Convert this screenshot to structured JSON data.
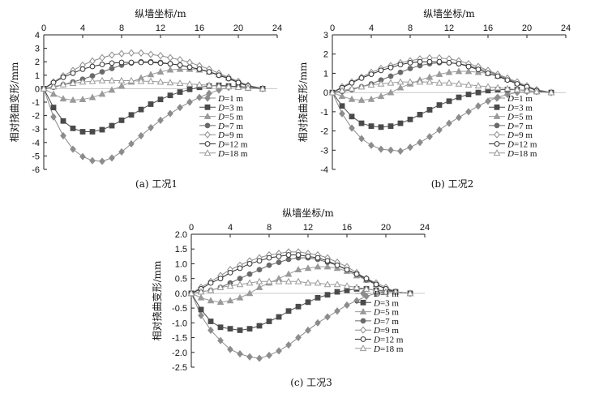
{
  "chart_data": [
    {
      "type": "line",
      "caption": "(a) 工况1",
      "xlabel": "纵墙坐标/m",
      "ylabel": "相对挠曲变形/mm",
      "xlim": [
        0,
        24
      ],
      "ylim": [
        -6,
        4
      ],
      "xticks": [
        0,
        4,
        8,
        12,
        16,
        20,
        24
      ],
      "yticks": [
        4,
        3,
        2,
        1,
        0,
        -1,
        -2,
        -3,
        -4,
        -5,
        -6
      ],
      "x": [
        0,
        1,
        2,
        3,
        4,
        5,
        6,
        7,
        8,
        9,
        10,
        11,
        12,
        13,
        14,
        15,
        16,
        17,
        18,
        19,
        20,
        21,
        22.5
      ],
      "series": [
        {
          "name": "D=1 m",
          "d": "D",
          "rest": "=1 m",
          "marker": "diamond-filled",
          "color": "#8c8c8c",
          "values": [
            0,
            -2.1,
            -3.5,
            -4.5,
            -5.05,
            -5.35,
            -5.4,
            -5.15,
            -4.7,
            -4.1,
            -3.5,
            -2.9,
            -2.35,
            -1.85,
            -1.4,
            -1.0,
            -0.65,
            -0.35,
            -0.1,
            0.1,
            0.2,
            0.1,
            0
          ]
        },
        {
          "name": "D=3 m",
          "d": "D",
          "rest": "=3 m",
          "marker": "square-filled",
          "color": "#4a4a4a",
          "values": [
            0,
            -1.4,
            -2.4,
            -2.95,
            -3.2,
            -3.2,
            -3.05,
            -2.75,
            -2.35,
            -1.95,
            -1.55,
            -1.15,
            -0.8,
            -0.5,
            -0.25,
            -0.05,
            0.1,
            0.2,
            0.25,
            0.2,
            0.15,
            0.05,
            0
          ]
        },
        {
          "name": "D=5 m",
          "d": "D",
          "rest": "=5 m",
          "marker": "triangle-filled",
          "color": "#9a9a9a",
          "values": [
            0,
            -0.4,
            -0.75,
            -0.85,
            -0.8,
            -0.65,
            -0.4,
            -0.1,
            0.2,
            0.5,
            0.8,
            1.05,
            1.25,
            1.4,
            1.45,
            1.45,
            1.4,
            1.25,
            1.05,
            0.8,
            0.5,
            0.2,
            0
          ]
        },
        {
          "name": "D=7 m",
          "d": "D",
          "rest": "=7 m",
          "marker": "circle-filled",
          "color": "#6a6a6a",
          "values": [
            0,
            0.1,
            0.3,
            0.5,
            0.7,
            0.95,
            1.25,
            1.5,
            1.75,
            1.9,
            2.0,
            2.0,
            1.95,
            1.85,
            1.75,
            1.6,
            1.45,
            1.25,
            1.0,
            0.75,
            0.5,
            0.2,
            0
          ]
        },
        {
          "name": "D=9 m",
          "d": "D",
          "rest": "=9 m",
          "marker": "diamond-open",
          "color": "#8c8c8c",
          "values": [
            0,
            0.5,
            0.95,
            1.35,
            1.75,
            2.05,
            2.3,
            2.5,
            2.6,
            2.65,
            2.65,
            2.55,
            2.45,
            2.3,
            2.15,
            1.95,
            1.7,
            1.45,
            1.15,
            0.85,
            0.55,
            0.25,
            0
          ]
        },
        {
          "name": "D=12 m",
          "d": "D",
          "rest": "=12 m",
          "marker": "circle-open",
          "color": "#333333",
          "values": [
            0,
            0.45,
            0.85,
            1.15,
            1.45,
            1.65,
            1.8,
            1.9,
            1.95,
            1.95,
            1.95,
            1.95,
            1.9,
            1.85,
            1.75,
            1.6,
            1.45,
            1.25,
            1.0,
            0.75,
            0.45,
            0.2,
            0
          ]
        },
        {
          "name": "D=18 m",
          "d": "D",
          "rest": "=18 m",
          "marker": "triangle-open",
          "color": "#9a9a9a",
          "values": [
            0,
            0.15,
            0.3,
            0.4,
            0.5,
            0.55,
            0.6,
            0.6,
            0.6,
            0.6,
            0.55,
            0.55,
            0.5,
            0.45,
            0.4,
            0.35,
            0.3,
            0.25,
            0.2,
            0.15,
            0.1,
            0.05,
            0
          ]
        }
      ]
    },
    {
      "type": "line",
      "caption": "(b) 工况2",
      "xlabel": "纵墙坐标/m",
      "ylabel": "相对挠曲变形/mm",
      "xlim": [
        0,
        24
      ],
      "ylim": [
        -4,
        3
      ],
      "xticks": [
        0,
        4,
        8,
        12,
        16,
        20,
        24
      ],
      "yticks": [
        3,
        2,
        1,
        0,
        -1,
        -2,
        -3,
        -4
      ],
      "x": [
        0,
        1,
        2,
        3,
        4,
        5,
        6,
        7,
        8,
        9,
        10,
        11,
        12,
        13,
        14,
        15,
        16,
        17,
        18,
        19,
        20,
        21,
        22.5
      ],
      "series": [
        {
          "name": "D=1 m",
          "d": "D",
          "rest": "=1 m",
          "marker": "diamond-filled",
          "color": "#8c8c8c",
          "values": [
            0,
            -1.1,
            -1.85,
            -2.4,
            -2.75,
            -2.95,
            -3.0,
            -3.05,
            -2.85,
            -2.6,
            -2.3,
            -1.95,
            -1.6,
            -1.3,
            -1.0,
            -0.7,
            -0.45,
            -0.25,
            -0.1,
            0.0,
            0.05,
            0.05,
            0
          ]
        },
        {
          "name": "D=3 m",
          "d": "D",
          "rest": "=3 m",
          "marker": "square-filled",
          "color": "#4a4a4a",
          "values": [
            0,
            -0.7,
            -1.25,
            -1.6,
            -1.75,
            -1.8,
            -1.75,
            -1.6,
            -1.4,
            -1.15,
            -0.9,
            -0.65,
            -0.45,
            -0.25,
            -0.1,
            0.0,
            0.1,
            0.15,
            0.15,
            0.15,
            0.1,
            0.05,
            0
          ]
        },
        {
          "name": "D=5 m",
          "d": "D",
          "rest": "=5 m",
          "marker": "triangle-filled",
          "color": "#9a9a9a",
          "values": [
            0,
            -0.2,
            -0.35,
            -0.4,
            -0.35,
            -0.2,
            0.0,
            0.25,
            0.45,
            0.65,
            0.8,
            0.95,
            1.05,
            1.1,
            1.1,
            1.05,
            1.0,
            0.85,
            0.7,
            0.5,
            0.3,
            0.1,
            0
          ]
        },
        {
          "name": "D=7 m",
          "d": "D",
          "rest": "=7 m",
          "marker": "circle-filled",
          "color": "#6a6a6a",
          "values": [
            0,
            0.05,
            0.15,
            0.3,
            0.45,
            0.65,
            0.85,
            1.05,
            1.25,
            1.4,
            1.5,
            1.55,
            1.55,
            1.5,
            1.4,
            1.25,
            1.1,
            0.9,
            0.7,
            0.5,
            0.3,
            0.1,
            0
          ]
        },
        {
          "name": "D=9 m",
          "d": "D",
          "rest": "=9 m",
          "marker": "diamond-open",
          "color": "#8c8c8c",
          "values": [
            0,
            0.3,
            0.55,
            0.8,
            1.05,
            1.25,
            1.4,
            1.55,
            1.65,
            1.75,
            1.8,
            1.8,
            1.75,
            1.65,
            1.5,
            1.35,
            1.15,
            0.95,
            0.75,
            0.55,
            0.35,
            0.15,
            0
          ]
        },
        {
          "name": "D=12 m",
          "d": "D",
          "rest": "=12 m",
          "marker": "circle-open",
          "color": "#333333",
          "values": [
            0,
            0.25,
            0.5,
            0.75,
            0.95,
            1.15,
            1.3,
            1.45,
            1.55,
            1.6,
            1.6,
            1.6,
            1.55,
            1.5,
            1.35,
            1.2,
            1.0,
            0.85,
            0.65,
            0.45,
            0.3,
            0.1,
            0
          ]
        },
        {
          "name": "D=18 m",
          "d": "D",
          "rest": "=18 m",
          "marker": "triangle-open",
          "color": "#9a9a9a",
          "values": [
            0,
            0.1,
            0.2,
            0.3,
            0.4,
            0.45,
            0.5,
            0.55,
            0.55,
            0.55,
            0.55,
            0.5,
            0.5,
            0.45,
            0.4,
            0.35,
            0.3,
            0.25,
            0.2,
            0.15,
            0.1,
            0.05,
            0
          ]
        }
      ]
    },
    {
      "type": "line",
      "caption": "(c) 工况3",
      "xlabel": "纵墙坐标/m",
      "ylabel": "相对挠曲变形/mm",
      "xlim": [
        0,
        24
      ],
      "ylim": [
        -2.5,
        2.0
      ],
      "xticks": [
        0,
        4,
        8,
        12,
        16,
        20,
        24
      ],
      "yticks": [
        2.0,
        1.5,
        1.0,
        0.5,
        0.0,
        -0.5,
        -1.0,
        -1.5,
        -2.0,
        -2.5
      ],
      "ytickLabels": [
        "2.0",
        "1.5",
        "1.0",
        "0.5",
        "0.0",
        "-0.5",
        "-1.0",
        "-1.5",
        "-2.0",
        "-2.5"
      ],
      "x": [
        0,
        1,
        2,
        3,
        4,
        5,
        6,
        7,
        8,
        9,
        10,
        11,
        12,
        13,
        14,
        15,
        16,
        17,
        18,
        19,
        20,
        21,
        22.5
      ],
      "series": [
        {
          "name": "D=1 m",
          "d": "D",
          "rest": "=1 m",
          "marker": "diamond-filled",
          "color": "#8c8c8c",
          "values": [
            0,
            -0.75,
            -1.25,
            -1.6,
            -1.9,
            -2.05,
            -2.15,
            -2.2,
            -2.1,
            -1.95,
            -1.75,
            -1.5,
            -1.25,
            -1.0,
            -0.8,
            -0.6,
            -0.4,
            -0.25,
            -0.1,
            0.0,
            0.05,
            0.05,
            0
          ]
        },
        {
          "name": "D=3 m",
          "d": "D",
          "rest": "=3 m",
          "marker": "square-filled",
          "color": "#4a4a4a",
          "values": [
            0,
            -0.55,
            -0.95,
            -1.15,
            -1.2,
            -1.25,
            -1.2,
            -1.1,
            -0.95,
            -0.8,
            -0.6,
            -0.45,
            -0.3,
            -0.15,
            -0.05,
            0.05,
            0.1,
            0.15,
            0.15,
            0.1,
            0.1,
            0.05,
            0
          ]
        },
        {
          "name": "D=5 m",
          "d": "D",
          "rest": "=5 m",
          "marker": "triangle-filled",
          "color": "#9a9a9a",
          "values": [
            0,
            -0.15,
            -0.25,
            -0.3,
            -0.25,
            -0.15,
            0.0,
            0.2,
            0.35,
            0.5,
            0.65,
            0.8,
            0.85,
            0.9,
            0.9,
            0.85,
            0.75,
            0.6,
            0.45,
            0.3,
            0.15,
            0.05,
            0
          ]
        },
        {
          "name": "D=7 m",
          "d": "D",
          "rest": "=7 m",
          "marker": "circle-filled",
          "color": "#6a6a6a",
          "values": [
            0,
            0.05,
            0.1,
            0.2,
            0.35,
            0.5,
            0.65,
            0.8,
            0.95,
            1.05,
            1.15,
            1.2,
            1.2,
            1.15,
            1.05,
            0.95,
            0.8,
            0.65,
            0.45,
            0.3,
            0.15,
            0.05,
            0
          ]
        },
        {
          "name": "D=9 m",
          "d": "D",
          "rest": "=9 m",
          "marker": "diamond-open",
          "color": "#8c8c8c",
          "values": [
            0,
            0.2,
            0.4,
            0.6,
            0.8,
            0.95,
            1.1,
            1.2,
            1.3,
            1.35,
            1.4,
            1.4,
            1.35,
            1.3,
            1.2,
            1.05,
            0.9,
            0.7,
            0.5,
            0.35,
            0.2,
            0.05,
            0
          ]
        },
        {
          "name": "D=12 m",
          "d": "D",
          "rest": "=12 m",
          "marker": "circle-open",
          "color": "#333333",
          "values": [
            0,
            0.15,
            0.35,
            0.5,
            0.7,
            0.85,
            1.0,
            1.1,
            1.2,
            1.25,
            1.3,
            1.3,
            1.25,
            1.2,
            1.1,
            0.95,
            0.8,
            0.65,
            0.5,
            0.3,
            0.15,
            0.05,
            0
          ]
        },
        {
          "name": "D=18 m",
          "d": "D",
          "rest": "=18 m",
          "marker": "triangle-open",
          "color": "#9a9a9a",
          "values": [
            0,
            0.05,
            0.1,
            0.2,
            0.25,
            0.3,
            0.35,
            0.4,
            0.4,
            0.4,
            0.4,
            0.4,
            0.35,
            0.35,
            0.3,
            0.3,
            0.25,
            0.2,
            0.15,
            0.1,
            0.05,
            0.05,
            0
          ]
        }
      ]
    }
  ]
}
